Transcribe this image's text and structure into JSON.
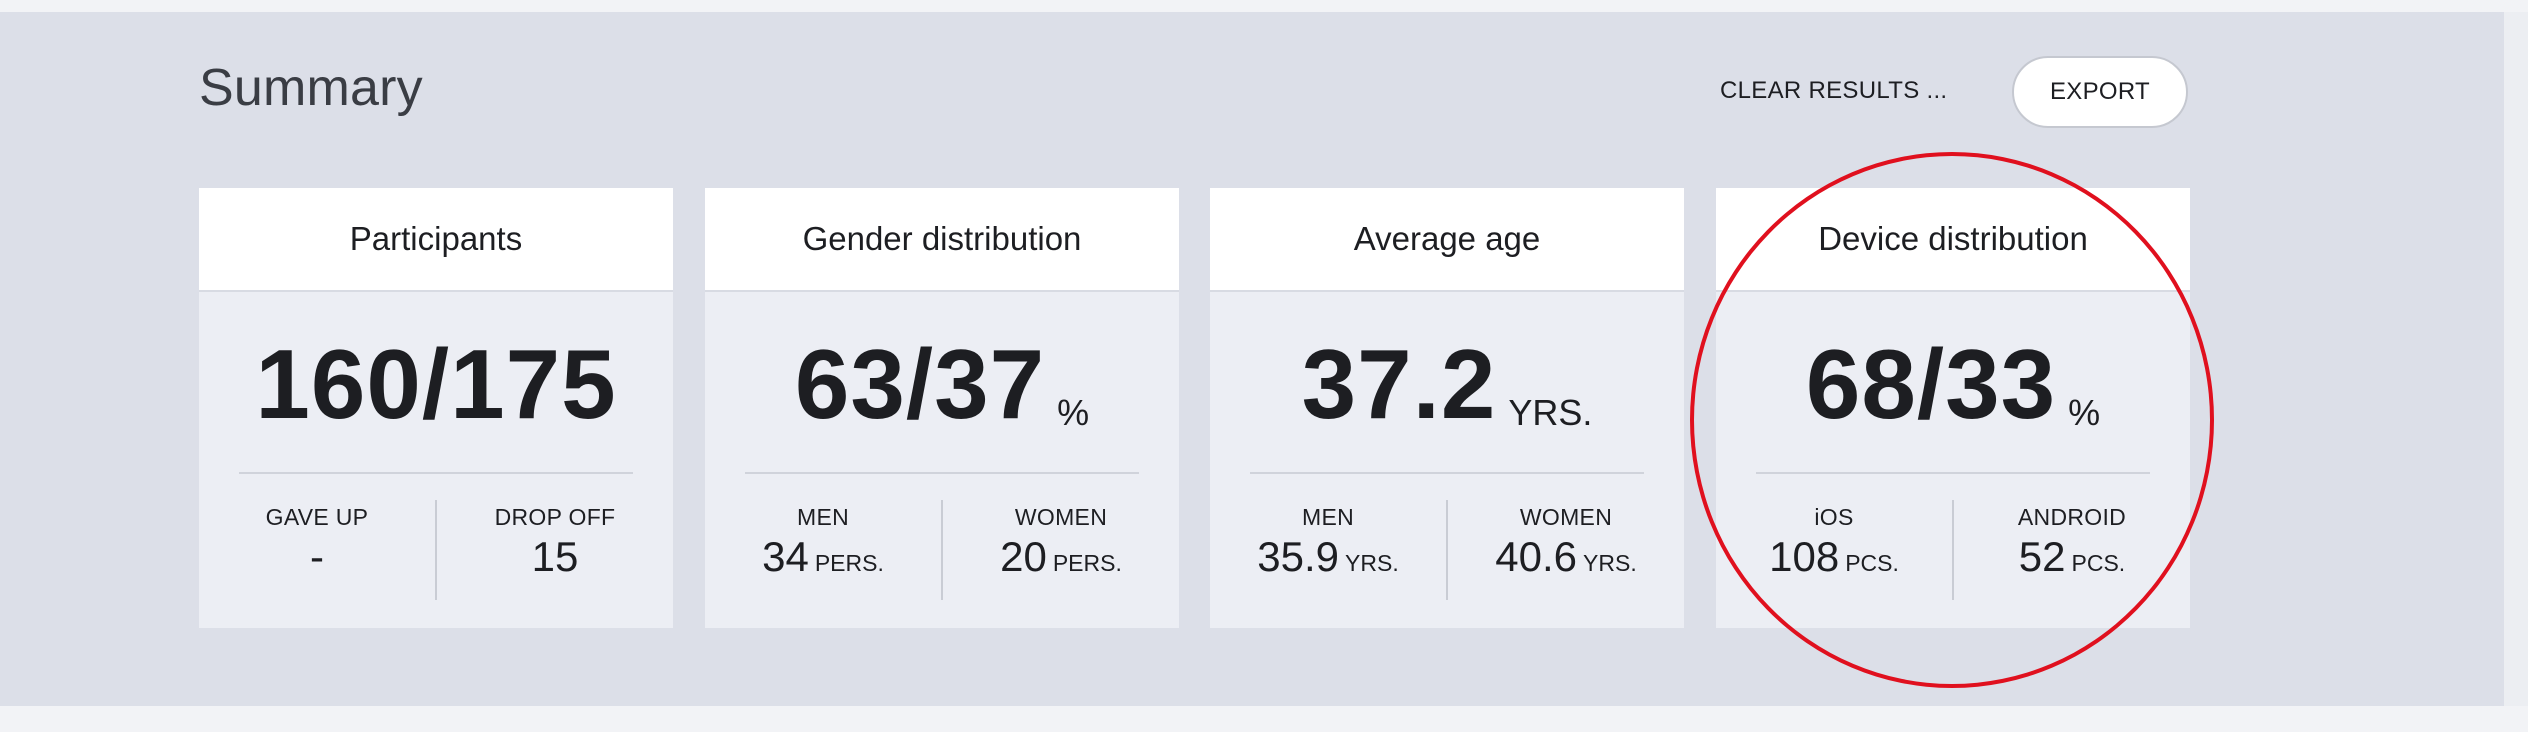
{
  "header": {
    "title": "Summary",
    "clear_results_label": "CLEAR RESULTS ...",
    "export_label": "EXPORT"
  },
  "cards": [
    {
      "title": "Participants",
      "main_value": "160/175",
      "main_unit": "",
      "left": {
        "label": "GAVE UP",
        "value": "-",
        "unit": ""
      },
      "right": {
        "label": "DROP OFF",
        "value": "15",
        "unit": ""
      }
    },
    {
      "title": "Gender distribution",
      "main_value": "63/37",
      "main_unit": "%",
      "left": {
        "label": "MEN",
        "value": "34",
        "unit": "PERS."
      },
      "right": {
        "label": "WOMEN",
        "value": "20",
        "unit": "PERS."
      }
    },
    {
      "title": "Average age",
      "main_value": "37.2",
      "main_unit": "YRS.",
      "left": {
        "label": "MEN",
        "value": "35.9",
        "unit": "YRS."
      },
      "right": {
        "label": "WOMEN",
        "value": "40.6",
        "unit": "YRS."
      }
    },
    {
      "title": "Device distribution",
      "main_value": "68/33",
      "main_unit": "%",
      "left": {
        "label": "iOS",
        "value": "108",
        "unit": "PCS."
      },
      "right": {
        "label": "ANDROID",
        "value": "52",
        "unit": "PCS."
      }
    }
  ],
  "colors": {
    "panel_background": "#dcdfe8",
    "card_background": "#eceef4",
    "highlight_ring": "#e0101e"
  }
}
